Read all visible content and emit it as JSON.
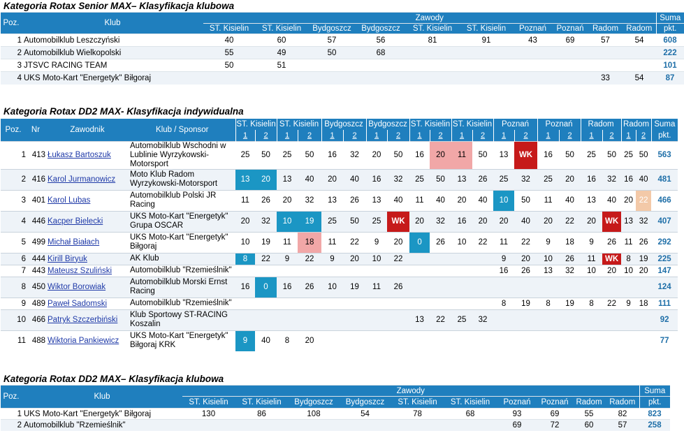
{
  "section1": {
    "title": "Kategoria Rotax Senior MAX– Klasyfikacja klubowa",
    "header": {
      "poz": "Poz.",
      "klub": "Klub",
      "zawody": "Zawody",
      "suma": "Suma",
      "pkt": "pkt.",
      "venues": [
        "ST. Kisielin",
        "ST. Kisielin",
        "Bydgoszcz",
        "Bydgoszcz",
        "ST. Kisielin",
        "ST. Kisielin",
        "Poznań",
        "Poznań",
        "Radom",
        "Radom"
      ]
    },
    "rows": [
      {
        "poz": "1",
        "klub": "Automobilklub Leszczyński",
        "v": [
          "40",
          "60",
          "57",
          "56",
          "81",
          "91",
          "43",
          "69",
          "57",
          "54"
        ],
        "suma": "608"
      },
      {
        "poz": "2",
        "klub": "Automobilklub  Wielkopolski",
        "v": [
          "55",
          "49",
          "50",
          "68",
          "",
          "",
          "",
          "",
          "",
          ""
        ],
        "suma": "222"
      },
      {
        "poz": "3",
        "klub": "JTSVC RACING TEAM",
        "v": [
          "50",
          "51",
          "",
          "",
          "",
          "",
          "",
          "",
          "",
          ""
        ],
        "suma": "101"
      },
      {
        "poz": "4",
        "klub": "UKS Moto-Kart \"Energetyk\" Biłgoraj",
        "v": [
          "",
          "",
          "",
          "",
          "",
          "",
          "",
          "",
          "33",
          "54"
        ],
        "suma": "87"
      }
    ]
  },
  "section2": {
    "title": "Kategoria Rotax DD2 MAX- Klasyfikacja indywidualna",
    "header": {
      "poz": "Poz.",
      "nr": "Nr",
      "zawodnik": "Zawodnik",
      "klub": "Klub / Sponsor",
      "suma": "Suma",
      "pkt": "pkt.",
      "venues": [
        "ST. Kisielin",
        "ST. Kisielin",
        "Bydgoszcz",
        "Bydgoszcz",
        "ST. Kisielin",
        "ST. Kisielin",
        "Poznań",
        "Poznań",
        "Radom",
        "Radom"
      ],
      "heats": [
        "1",
        "2",
        "1",
        "2",
        "1",
        "2",
        "1",
        "2",
        "1",
        "2",
        "1",
        "2",
        "1",
        "2",
        "1",
        "2",
        "1",
        "2",
        "1",
        "2"
      ]
    },
    "rows": [
      {
        "poz": "1",
        "nr": "413",
        "name": "Łukasz Bartoszuk",
        "club": "Automobilklub Wschodni w Lublinie Wyrzykowski-Motorsport",
        "v": [
          "25",
          "50",
          "25",
          "50",
          "16",
          "32",
          "20",
          "50",
          "16",
          "20",
          "11",
          "50",
          "13",
          "WK",
          "16",
          "50",
          "25",
          "50",
          "25",
          "50"
        ],
        "suma": "563"
      },
      {
        "poz": "2",
        "nr": "416",
        "name": "Karol Jurmanowicz",
        "club": "Moto Klub Radom Wyrzykowski-Motorsport",
        "v": [
          "13",
          "20",
          "13",
          "40",
          "20",
          "40",
          "16",
          "32",
          "25",
          "50",
          "13",
          "26",
          "25",
          "32",
          "25",
          "20",
          "16",
          "32",
          "16",
          "40"
        ],
        "suma": "481"
      },
      {
        "poz": "3",
        "nr": "401",
        "name": "Karol Lubas",
        "club": "Automobilklub Polski JR Racing",
        "v": [
          "11",
          "26",
          "20",
          "32",
          "13",
          "26",
          "13",
          "40",
          "11",
          "40",
          "20",
          "40",
          "10",
          "50",
          "11",
          "40",
          "13",
          "40",
          "20",
          "22"
        ],
        "suma": "466"
      },
      {
        "poz": "4",
        "nr": "446",
        "name": "Kacper Bielecki",
        "club": "UKS Moto-Kart \"Energetyk\" Grupa OSCAR",
        "v": [
          "20",
          "32",
          "10",
          "19",
          "25",
          "50",
          "25",
          "WK",
          "20",
          "32",
          "16",
          "20",
          "20",
          "40",
          "20",
          "22",
          "20",
          "WK",
          "13",
          "32"
        ],
        "suma": "407"
      },
      {
        "poz": "5",
        "nr": "499",
        "name": "Michał Białach",
        "club": "UKS Moto-Kart \"Energetyk\" Biłgoraj",
        "v": [
          "10",
          "19",
          "11",
          "18",
          "11",
          "22",
          "9",
          "20",
          "0",
          "26",
          "10",
          "22",
          "11",
          "22",
          "9",
          "18",
          "9",
          "26",
          "11",
          "26"
        ],
        "suma": "292"
      },
      {
        "poz": "6",
        "nr": "444",
        "name": "Kirill Biryuk",
        "club": "AK Klub",
        "v": [
          "8",
          "22",
          "9",
          "22",
          "9",
          "20",
          "10",
          "22",
          "",
          "",
          "",
          "",
          "9",
          "20",
          "10",
          "26",
          "11",
          "WK",
          "8",
          "19"
        ],
        "suma": "225"
      },
      {
        "poz": "7",
        "nr": "443",
        "name": "Mateusz Szuliński",
        "club": "Automobilklub \"Rzemieślnik\"",
        "v": [
          "",
          "",
          "",
          "",
          "",
          "",
          "",
          "",
          "",
          "",
          "",
          "",
          "16",
          "26",
          "13",
          "32",
          "10",
          "20",
          "10",
          "20"
        ],
        "suma": "147"
      },
      {
        "poz": "8",
        "nr": "450",
        "name": "Wiktor Borowiak",
        "club": "Automobilklub Morski Ernst Racing",
        "v": [
          "16",
          "0",
          "16",
          "26",
          "10",
          "19",
          "11",
          "26",
          "",
          "",
          "",
          "",
          "",
          "",
          "",
          "",
          "",
          "",
          "",
          ""
        ],
        "suma": "124"
      },
      {
        "poz": "9",
        "nr": "489",
        "name": "Paweł Sadomski",
        "club": "Automobilklub \"Rzemieślnik\"",
        "v": [
          "",
          "",
          "",
          "",
          "",
          "",
          "",
          "",
          "",
          "",
          "",
          "",
          "8",
          "19",
          "8",
          "19",
          "8",
          "22",
          "9",
          "18"
        ],
        "suma": "111"
      },
      {
        "poz": "10",
        "nr": "466",
        "name": "Patryk Szczerbiński",
        "club": "Klub Sportowy ST-RACING Koszalin",
        "v": [
          "",
          "",
          "",
          "",
          "",
          "",
          "",
          "",
          "13",
          "22",
          "25",
          "32",
          "",
          "",
          "",
          "",
          "",
          "",
          "",
          ""
        ],
        "suma": "92"
      },
      {
        "poz": "11",
        "nr": "488",
        "name": "Wiktoria Pankiewicz",
        "club": "UKS Moto-Kart \"Energetyk\" Biłgoraj KRK",
        "v": [
          "9",
          "40",
          "8",
          "20",
          "",
          "",
          "",
          "",
          "",
          "",
          "",
          "",
          "",
          "",
          "",
          "",
          "",
          "",
          "",
          ""
        ],
        "suma": "77"
      }
    ]
  },
  "section3": {
    "title": "Kategoria Rotax DD2 MAX– Klasyfikacja klubowa",
    "header": {
      "poz": "Poz.",
      "klub": "Klub",
      "zawody": "Zawody",
      "suma": "Suma",
      "pkt": "pkt.",
      "venues": [
        "ST. Kisielin",
        "ST. Kisielin",
        "Bydgoszcz",
        "Bydgoszcz",
        "ST. Kisielin",
        "ST. Kisielin",
        "Poznań",
        "Poznań",
        "Radom",
        "Radom"
      ]
    },
    "rows": [
      {
        "poz": "1",
        "klub": "UKS Moto-Kart \"Energetyk\" Biłgoraj",
        "v": [
          "130",
          "86",
          "108",
          "54",
          "78",
          "68",
          "93",
          "69",
          "55",
          "82"
        ],
        "suma": "823"
      },
      {
        "poz": "2",
        "klub": "Automobilklub \"Rzemieślnik\"",
        "v": [
          "",
          "",
          "",
          "",
          "",
          "",
          "69",
          "72",
          "60",
          "57"
        ],
        "suma": "258"
      }
    ]
  },
  "colors": {
    "header_blue": "#1f7fbe",
    "highlight_pink": "#f1a7a7",
    "highlight_teal": "#1b96c4",
    "highlight_wk_red": "#c61a1a",
    "suma_text": "#1f6fa8"
  }
}
